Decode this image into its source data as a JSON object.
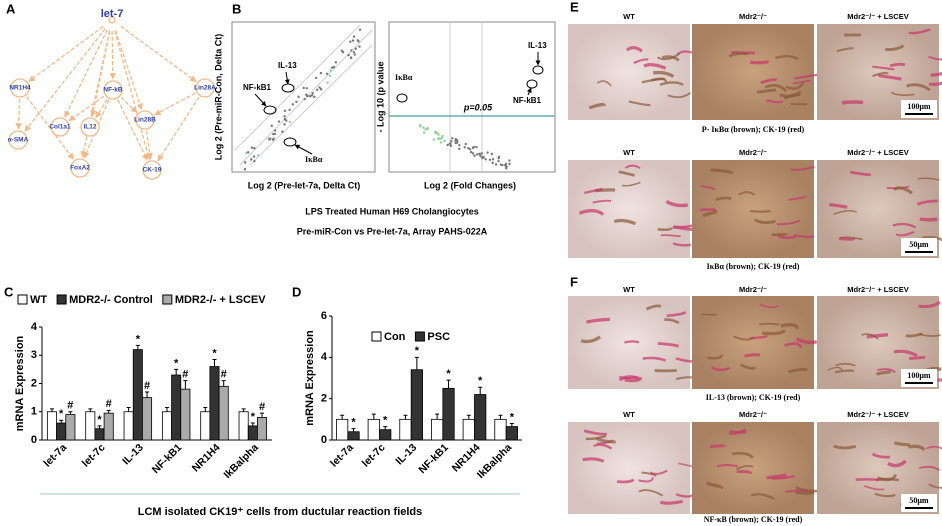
{
  "labels": [
    "A",
    "B",
    "C",
    "D",
    "E",
    "F"
  ],
  "network": {
    "nodes": [
      "let-7",
      "NR1H4",
      "NF-kB",
      "Lin28A",
      "Col1a1",
      "IL12",
      "Lin28B",
      "α-SMA",
      "FoxA2",
      "CK-19"
    ]
  },
  "scatter": {
    "y_label": "Log 2 (Pre-miR-Con, Delta Ct)",
    "x_label": "Log 2 (Pre-let-7a, Delta Ct)",
    "annotations": [
      "IL-13",
      "NF-kB1",
      "IκBα"
    ]
  },
  "volcano": {
    "y_label": "- Log 10 (p value",
    "x_label": "Log 2 (Fold Changes)",
    "threshold": "p=0.05",
    "annotations": [
      "IL-13",
      "NF-kB1",
      "IκBα"
    ]
  },
  "panel_b_caption": [
    "LPS Treated Human H69 Cholangiocytes",
    "Pre-miR-Con vs Pre-let-7a, Array PAHS-022A"
  ],
  "chart_data": [
    {
      "type": "bar",
      "y_label": "mRNA Expression",
      "categories": [
        "let-7a",
        "let-7c",
        "IL-13",
        "NF-kB1",
        "NR1H4",
        "IkBalpha"
      ],
      "series": [
        {
          "name": "WT",
          "color": "#ffffff",
          "values": [
            1,
            1,
            1,
            1,
            1,
            1
          ],
          "errors": [
            0.1,
            0.1,
            0.15,
            0.15,
            0.15,
            0.1
          ],
          "significance": [
            null,
            null,
            null,
            null,
            null,
            null
          ]
        },
        {
          "name": "MDR2-/- Control",
          "color": "#333333",
          "values": [
            0.6,
            0.4,
            3.2,
            2.3,
            2.6,
            0.5
          ],
          "errors": [
            0.1,
            0.1,
            0.15,
            0.2,
            0.25,
            0.1
          ],
          "significance": [
            "*",
            "*",
            "*",
            "*",
            "*",
            "*"
          ]
        },
        {
          "name": "MDR2-/- + LSCEV",
          "color": "#aaaaaa",
          "values": [
            0.9,
            0.95,
            1.5,
            1.8,
            1.9,
            0.8
          ],
          "errors": [
            0.1,
            0.1,
            0.2,
            0.3,
            0.2,
            0.15
          ],
          "significance": [
            "#",
            "#",
            "#",
            "#",
            "#",
            "#"
          ]
        }
      ],
      "ylim": [
        0,
        4
      ],
      "yticks": [
        0,
        1,
        2,
        3,
        4
      ]
    },
    {
      "type": "bar",
      "y_label": "mRNA Expression",
      "categories": [
        "let-7a",
        "let-7c",
        "IL-13",
        "NF-kB1",
        "NR1H4",
        "IkBalpha"
      ],
      "series": [
        {
          "name": "Con",
          "color": "#ffffff",
          "values": [
            1,
            1,
            1,
            1,
            1,
            1
          ],
          "errors": [
            0.2,
            0.25,
            0.2,
            0.25,
            0.2,
            0.2
          ],
          "significance": [
            null,
            null,
            null,
            null,
            null,
            null
          ]
        },
        {
          "name": "PSC",
          "color": "#333333",
          "values": [
            0.4,
            0.5,
            3.4,
            2.5,
            2.2,
            0.65
          ],
          "errors": [
            0.15,
            0.15,
            0.6,
            0.4,
            0.35,
            0.15
          ],
          "significance": [
            "*",
            "*",
            "*",
            "*",
            "*",
            "*"
          ]
        }
      ],
      "ylim": [
        0,
        6
      ],
      "yticks": [
        0,
        2,
        4,
        6
      ]
    }
  ],
  "caption": "LCM isolated CK19⁺ cells from ductular reaction fields",
  "micrographs": {
    "rows": [
      {
        "columns": [
          "WT",
          "Mdr2⁻/⁻",
          "Mdr2⁻/⁻ + LSCEV"
        ],
        "caption": "P- IκBα (brown); CK-19 (red)",
        "scale": "100μm"
      },
      {
        "columns": [
          "WT",
          "Mdr2⁻/⁻",
          "Mdr2⁻/⁻ + LSCEV"
        ],
        "caption": "IκBα (brown); CK-19 (red)",
        "scale": "50μm"
      },
      {
        "columns": [
          "WT",
          "Mdr2⁻/⁻",
          "Mdr2⁻/⁻ + LSCEV"
        ],
        "caption": "IL-13 (brown); CK-19 (red)",
        "scale": "100μm"
      },
      {
        "columns": [
          "WT",
          "Mdr2⁻/⁻",
          "Mdr2⁻/⁻ + LSCEV"
        ],
        "caption": "NF-κB (brown); CK-19 (red)",
        "scale": "50μm"
      }
    ]
  }
}
